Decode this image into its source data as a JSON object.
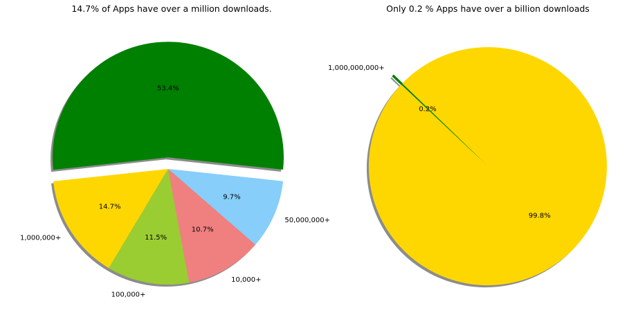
{
  "chart_data": [
    {
      "type": "pie",
      "title": "14.7% of Apps have over a million downloads.",
      "slices": [
        {
          "label": "50,000,000+",
          "value": 9.7,
          "pct_label": "9.7%",
          "color": "#87cefa"
        },
        {
          "label": "",
          "value": 53.4,
          "pct_label": "53.4%",
          "color": "#008000",
          "exploded": true
        },
        {
          "label": "1,000,000+",
          "value": 14.7,
          "pct_label": "14.7%",
          "color": "#ffd700"
        },
        {
          "label": "100,000+",
          "value": 11.5,
          "pct_label": "11.5%",
          "color": "#9acd32"
        },
        {
          "label": "10,000+",
          "value": 10.7,
          "pct_label": "10.7%",
          "color": "#f08080"
        }
      ],
      "shadow": true
    },
    {
      "type": "pie",
      "title": "Only 0.2 % Apps have over a billion downloads",
      "slices": [
        {
          "label": "1,000,000,000+",
          "value": 0.2,
          "pct_label": "0.2%",
          "color": "#008000",
          "exploded": true
        },
        {
          "label": "",
          "value": 99.8,
          "pct_label": "99.8%",
          "color": "#ffd700"
        }
      ],
      "shadow": true
    }
  ]
}
